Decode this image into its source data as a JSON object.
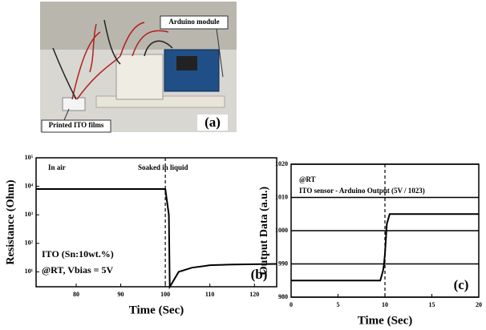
{
  "photo": {
    "labels": [
      "Arduino module",
      "Printed ITO films"
    ],
    "panel_label": "(a)"
  },
  "chart_data": [
    {
      "type": "line",
      "xlabel": "Time (Sec)",
      "ylabel": "Resistance (Ohm)",
      "log_y": true,
      "xlim": [
        71,
        125
      ],
      "xticks": [
        80,
        90,
        100,
        110,
        120
      ],
      "ylim": [
        3,
        100000
      ],
      "yticks": [
        {
          "value": 10,
          "label": "10¹"
        },
        {
          "value": 100,
          "label": "10²"
        },
        {
          "value": 1000,
          "label": "10³"
        },
        {
          "value": 10000,
          "label": "10⁴"
        },
        {
          "value": 100000,
          "label": "10⁵"
        }
      ],
      "marker_x": 100,
      "grid": false,
      "annotations": [
        "In air",
        "Soaked in liquid",
        "ITO (Sn:10wt.%)",
        "@RT, Vbias = 5V"
      ],
      "panel_label": "(b)",
      "series": [
        {
          "color": "#000000",
          "x": [
            71,
            100,
            100.8,
            101,
            101.5,
            103,
            106,
            110,
            115,
            125
          ],
          "values": [
            8000,
            8000,
            1000,
            3,
            4,
            10,
            14,
            17,
            18,
            19
          ]
        }
      ]
    },
    {
      "type": "line",
      "xlabel": "Time (Sec)",
      "ylabel": "Output Data (a.u.)",
      "log_y": false,
      "xlim": [
        0,
        20
      ],
      "xticks": [
        0,
        5,
        10,
        15,
        20
      ],
      "ylim": [
        980,
        1020
      ],
      "yticks": [
        980,
        990,
        1000,
        1010,
        1020
      ],
      "marker_x": 10,
      "grid": true,
      "annotations": [
        "@RT",
        "ITO sensor - Arduino Output (5V / 1023)"
      ],
      "panel_label": "(c)",
      "series": [
        {
          "color": "#000000",
          "x": [
            0,
            9.5,
            9.6,
            9.8,
            9.9,
            10.0,
            10.2,
            10.5,
            20
          ],
          "values": [
            985,
            985,
            986,
            988,
            990,
            993,
            1002,
            1005,
            1005
          ]
        }
      ]
    }
  ]
}
